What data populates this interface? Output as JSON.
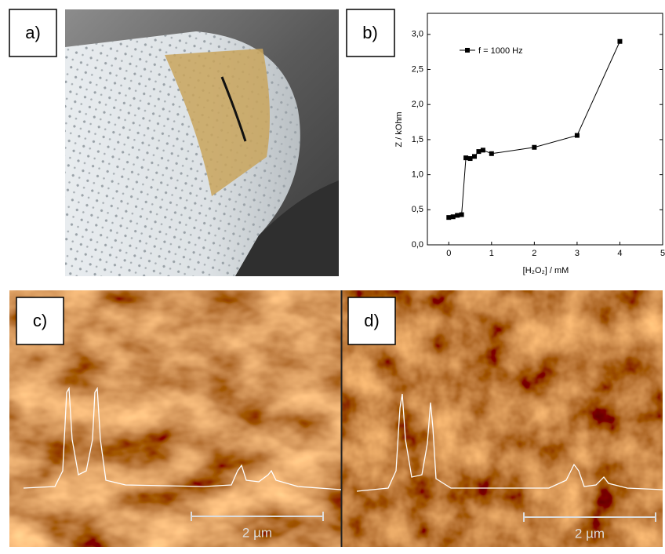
{
  "panels": [
    {
      "label": "a)"
    },
    {
      "label": "b)"
    },
    {
      "label": "c)",
      "scale_bar": "2 µm"
    },
    {
      "label": "d)",
      "scale_bar": "2 µm"
    }
  ],
  "chart_data": {
    "type": "line",
    "x_label": "[H₂O₂] / mM",
    "y_label": "Z / kOhm",
    "x": [
      0,
      0.1,
      0.2,
      0.3,
      0.4,
      0.5,
      0.6,
      0.7,
      0.8,
      1.0,
      2,
      3,
      4
    ],
    "series": [
      {
        "name": "f = 1000 Hz",
        "color": "#000000",
        "values": [
          0.39,
          0.4,
          0.42,
          0.43,
          1.24,
          1.23,
          1.26,
          1.33,
          1.35,
          1.3,
          1.39,
          1.56,
          2.9
        ]
      }
    ],
    "xlim": [
      -0.5,
      5
    ],
    "ylim": [
      0,
      3.3
    ],
    "xticks": [
      0,
      1,
      2,
      3,
      4,
      5
    ],
    "yticks": [
      {
        "value": 0,
        "label": "0,0"
      },
      {
        "value": 0.5,
        "label": "0,5"
      },
      {
        "value": 1,
        "label": "1,0"
      },
      {
        "value": 1.5,
        "label": "1,5"
      },
      {
        "value": 2,
        "label": "2,0"
      },
      {
        "value": 2.5,
        "label": "2,5"
      },
      {
        "value": 3,
        "label": "3,0"
      }
    ],
    "legend": "upper-left"
  }
}
